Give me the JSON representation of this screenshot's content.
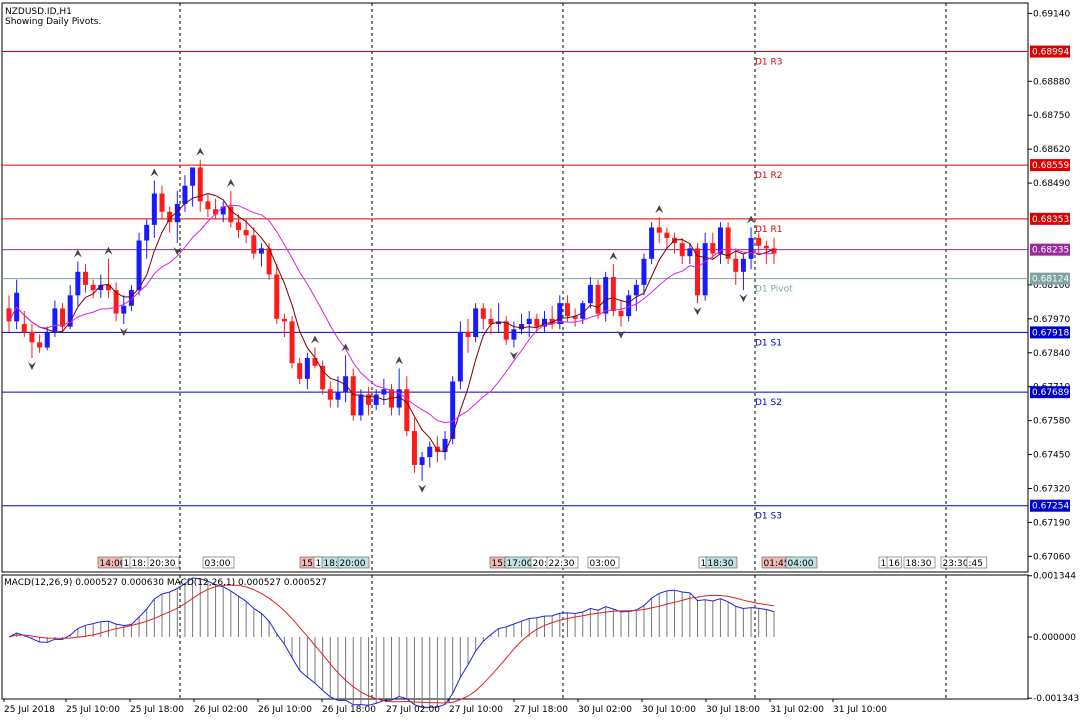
{
  "header": {
    "symbol_line": "NZDUSD.ID,H1",
    "subtitle": "Showing Daily Pivots."
  },
  "colors": {
    "bull": "#1a1aff",
    "bear": "#ff1a1a",
    "resistance": "#dd0000",
    "support": "#0000cc",
    "pivot": "#7fa3a3",
    "ma_fast": "#7a0000",
    "ma_slow": "#dd22dd",
    "macd_line": "#2222dd",
    "signal_line": "#dd2222",
    "grid": "#000000",
    "current_price": "#9a2a9a"
  },
  "chart_data": [
    {
      "type": "candlestick",
      "name": "price",
      "y_ticks": [
        "0.69140",
        "0.68880",
        "0.68750",
        "0.68620",
        "0.68490",
        "0.68100",
        "0.67970",
        "0.67840",
        "0.67710",
        "0.67580",
        "0.67450",
        "0.67320",
        "0.67190",
        "0.67060"
      ],
      "ylim": [
        0.67,
        0.6918
      ],
      "pivot_levels": [
        {
          "label": "D1 R3",
          "value": 0.68994,
          "kind": "resistance",
          "price_tag": "0.68994"
        },
        {
          "label": "D1 R2",
          "value": 0.68559,
          "kind": "resistance",
          "price_tag": "0.68559"
        },
        {
          "label": "D1 R1",
          "value": 0.68353,
          "kind": "resistance",
          "price_tag": "0.68353"
        },
        {
          "label": "D1 Pivot",
          "value": 0.68124,
          "kind": "pivot",
          "price_tag": "0.68124"
        },
        {
          "label": "D1 S1",
          "value": 0.67918,
          "kind": "support",
          "price_tag": "0.67918"
        },
        {
          "label": "D1 S2",
          "value": 0.67689,
          "kind": "support",
          "price_tag": "0.67689"
        },
        {
          "label": "D1 S3",
          "value": 0.67254,
          "kind": "support",
          "price_tag": "0.67254"
        }
      ],
      "current_price": {
        "value": 0.68235,
        "price_tag": "0.68235"
      },
      "candles": [
        [
          0.6801,
          0.6806,
          0.6792,
          0.6796
        ],
        [
          0.6796,
          0.6812,
          0.6793,
          0.6807
        ],
        [
          0.6795,
          0.68,
          0.679,
          0.6792
        ],
        [
          0.6792,
          0.6795,
          0.6782,
          0.6788
        ],
        [
          0.6788,
          0.6791,
          0.6784,
          0.6786
        ],
        [
          0.6786,
          0.6794,
          0.6785,
          0.6792
        ],
        [
          0.6792,
          0.6804,
          0.679,
          0.6801
        ],
        [
          0.6801,
          0.6803,
          0.6792,
          0.6794
        ],
        [
          0.6794,
          0.681,
          0.6793,
          0.6806
        ],
        [
          0.6806,
          0.6819,
          0.6802,
          0.6815
        ],
        [
          0.6815,
          0.6818,
          0.6807,
          0.681
        ],
        [
          0.681,
          0.6812,
          0.6805,
          0.6808
        ],
        [
          0.6808,
          0.6814,
          0.6805,
          0.681
        ],
        [
          0.681,
          0.682,
          0.6805,
          0.6808
        ],
        [
          0.6808,
          0.6811,
          0.6796,
          0.6799
        ],
        [
          0.6799,
          0.6806,
          0.6795,
          0.6802
        ],
        [
          0.6802,
          0.681,
          0.68,
          0.6808
        ],
        [
          0.6808,
          0.683,
          0.6806,
          0.6827
        ],
        [
          0.6827,
          0.6835,
          0.682,
          0.6833
        ],
        [
          0.6833,
          0.685,
          0.6828,
          0.6845
        ],
        [
          0.6845,
          0.6848,
          0.6835,
          0.6838
        ],
        [
          0.6838,
          0.684,
          0.683,
          0.6834
        ],
        [
          0.6834,
          0.6846,
          0.6826,
          0.6841
        ],
        [
          0.6841,
          0.6852,
          0.6838,
          0.6848
        ],
        [
          0.6848,
          0.6855,
          0.684,
          0.6855
        ],
        [
          0.6855,
          0.6858,
          0.6838,
          0.6842
        ],
        [
          0.6842,
          0.6845,
          0.6836,
          0.6839
        ],
        [
          0.6839,
          0.6843,
          0.6835,
          0.6837
        ],
        [
          0.6837,
          0.6842,
          0.6834,
          0.684
        ],
        [
          0.684,
          0.6846,
          0.6832,
          0.6834
        ],
        [
          0.6834,
          0.6837,
          0.6828,
          0.6831
        ],
        [
          0.6831,
          0.6835,
          0.6826,
          0.6829
        ],
        [
          0.6829,
          0.6832,
          0.682,
          0.6822
        ],
        [
          0.6822,
          0.6826,
          0.6817,
          0.6824
        ],
        [
          0.6824,
          0.6826,
          0.6812,
          0.6814
        ],
        [
          0.6814,
          0.6818,
          0.6795,
          0.6797
        ],
        [
          0.6797,
          0.6799,
          0.679,
          0.6796
        ],
        [
          0.6796,
          0.6798,
          0.6778,
          0.678
        ],
        [
          0.678,
          0.6782,
          0.6772,
          0.6774
        ],
        [
          0.6774,
          0.6784,
          0.677,
          0.6782
        ],
        [
          0.6782,
          0.6786,
          0.6778,
          0.6779
        ],
        [
          0.6779,
          0.6781,
          0.6768,
          0.677
        ],
        [
          0.677,
          0.6773,
          0.6763,
          0.6766
        ],
        [
          0.6766,
          0.6775,
          0.6763,
          0.6769
        ],
        [
          0.6769,
          0.6783,
          0.6765,
          0.6775
        ],
        [
          0.6775,
          0.6778,
          0.6758,
          0.676
        ],
        [
          0.676,
          0.677,
          0.6758,
          0.6768
        ],
        [
          0.6768,
          0.6771,
          0.676,
          0.6764
        ],
        [
          0.6764,
          0.677,
          0.6762,
          0.6768
        ],
        [
          0.6768,
          0.6774,
          0.6764,
          0.677
        ],
        [
          0.677,
          0.6772,
          0.676,
          0.6763
        ],
        [
          0.6763,
          0.6778,
          0.676,
          0.677
        ],
        [
          0.677,
          0.6775,
          0.6752,
          0.6754
        ],
        [
          0.6754,
          0.6759,
          0.6738,
          0.6741
        ],
        [
          0.6741,
          0.6746,
          0.6735,
          0.6744
        ],
        [
          0.6744,
          0.675,
          0.674,
          0.6748
        ],
        [
          0.6748,
          0.6752,
          0.6742,
          0.6746
        ],
        [
          0.6746,
          0.6754,
          0.6743,
          0.6751
        ],
        [
          0.6751,
          0.6775,
          0.6749,
          0.6773
        ],
        [
          0.6773,
          0.6796,
          0.677,
          0.6792
        ],
        [
          0.6792,
          0.6797,
          0.6784,
          0.679
        ],
        [
          0.679,
          0.6803,
          0.6788,
          0.6801
        ],
        [
          0.6801,
          0.6803,
          0.6793,
          0.6797
        ],
        [
          0.6797,
          0.6801,
          0.6791,
          0.6795
        ],
        [
          0.6795,
          0.6803,
          0.6792,
          0.6796
        ],
        [
          0.6796,
          0.6798,
          0.6787,
          0.6789
        ],
        [
          0.6789,
          0.6796,
          0.6786,
          0.6793
        ],
        [
          0.6793,
          0.6799,
          0.6791,
          0.6795
        ],
        [
          0.6795,
          0.68,
          0.679,
          0.6797
        ],
        [
          0.6797,
          0.6799,
          0.6792,
          0.6794
        ],
        [
          0.6794,
          0.68,
          0.6792,
          0.6797
        ],
        [
          0.6797,
          0.6802,
          0.6793,
          0.6795
        ],
        [
          0.6795,
          0.6806,
          0.6793,
          0.6803
        ],
        [
          0.6803,
          0.6806,
          0.6796,
          0.6798
        ],
        [
          0.6798,
          0.6801,
          0.6794,
          0.6797
        ],
        [
          0.6797,
          0.6804,
          0.6795,
          0.6803
        ],
        [
          0.6803,
          0.6813,
          0.6801,
          0.681
        ],
        [
          0.681,
          0.6812,
          0.6797,
          0.6799
        ],
        [
          0.6799,
          0.6815,
          0.6796,
          0.6813
        ],
        [
          0.6813,
          0.6818,
          0.6798,
          0.68
        ],
        [
          0.68,
          0.6804,
          0.6794,
          0.6798
        ],
        [
          0.6798,
          0.6808,
          0.6796,
          0.6806
        ],
        [
          0.6806,
          0.6812,
          0.68,
          0.681
        ],
        [
          0.681,
          0.6822,
          0.6806,
          0.682
        ],
        [
          0.682,
          0.6834,
          0.6818,
          0.6832
        ],
        [
          0.6832,
          0.6836,
          0.6826,
          0.683
        ],
        [
          0.683,
          0.6832,
          0.6824,
          0.6828
        ],
        [
          0.6828,
          0.683,
          0.6822,
          0.6826
        ],
        [
          0.6826,
          0.6828,
          0.6818,
          0.6821
        ],
        [
          0.6821,
          0.6826,
          0.6818,
          0.6824
        ],
        [
          0.6824,
          0.6826,
          0.6803,
          0.6806
        ],
        [
          0.6806,
          0.683,
          0.6804,
          0.6826
        ],
        [
          0.6826,
          0.683,
          0.682,
          0.6822
        ],
        [
          0.6822,
          0.6834,
          0.6818,
          0.6832
        ],
        [
          0.6832,
          0.6834,
          0.6818,
          0.682
        ],
        [
          0.682,
          0.6824,
          0.681,
          0.6815
        ],
        [
          0.6815,
          0.6822,
          0.6808,
          0.682
        ],
        [
          0.682,
          0.6832,
          0.6816,
          0.6828
        ],
        [
          0.6828,
          0.683,
          0.6822,
          0.6825
        ],
        [
          0.6825,
          0.6827,
          0.6818,
          0.6824
        ],
        [
          0.6824,
          0.6828,
          0.6818,
          0.6822
        ]
      ],
      "indicators": [
        {
          "name": "MA fast",
          "color_key": "ma_fast"
        },
        {
          "name": "MA slow",
          "color_key": "ma_slow"
        }
      ]
    },
    {
      "type": "macd",
      "name": "MACD",
      "title": "MACD(12,26,9) 0.000527 0.000630 MACD(12,26,1) 0.000527 0.000527",
      "y_ticks": [
        "0.001344",
        "0.000000",
        "-0.001343"
      ],
      "ylim": [
        -0.00136,
        0.00136
      ]
    }
  ],
  "time_axis": {
    "labels": [
      "25 Jul 2018",
      "25 Jul 10:00",
      "25 Jul 18:00",
      "26 Jul 02:00",
      "26 Jul 10:00",
      "26 Jul 18:00",
      "27 Jul 02:00",
      "27 Jul 10:00",
      "27 Jul 18:00",
      "30 Jul 02:00",
      "30 Jul 10:00",
      "30 Jul 18:00",
      "31 Jul 02:00",
      "31 Jul 10:00"
    ],
    "separator_count": 7
  },
  "time_markers": [
    {
      "text": "14:00",
      "style": "red"
    },
    {
      "text": "1",
      "style": "plain"
    },
    {
      "text": "18:",
      "style": "plain"
    },
    {
      "text": "20:30",
      "style": "plain"
    },
    {
      "text": "03:00",
      "style": "plain"
    },
    {
      "text": "15:",
      "style": "red"
    },
    {
      "text": "1",
      "style": "plain"
    },
    {
      "text": "18:",
      "style": "teal"
    },
    {
      "text": "20:00",
      "style": "teal"
    },
    {
      "text": "15:",
      "style": "red"
    },
    {
      "text": "17:00",
      "style": "teal"
    },
    {
      "text": "20:",
      "style": "plain"
    },
    {
      "text": "22:30",
      "style": "plain"
    },
    {
      "text": "03:00",
      "style": "plain"
    },
    {
      "text": "1",
      "style": "plain"
    },
    {
      "text": "18:30",
      "style": "teal"
    },
    {
      "text": "01:45",
      "style": "red"
    },
    {
      "text": "04:00",
      "style": "teal"
    },
    {
      "text": "1",
      "style": "plain"
    },
    {
      "text": "16",
      "style": "plain"
    },
    {
      "text": "18:30",
      "style": "plain"
    },
    {
      "text": "23:30",
      "style": "plain"
    },
    {
      "text": ":45",
      "style": "plain"
    }
  ]
}
